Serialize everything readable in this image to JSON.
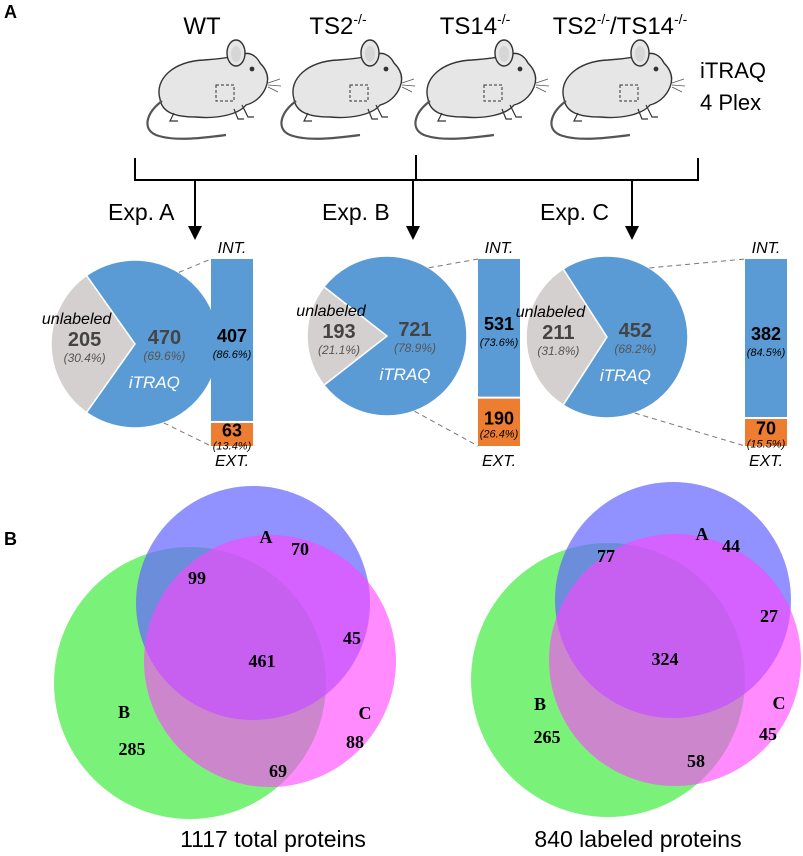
{
  "panels": {
    "a_label": "A",
    "b_label": "B"
  },
  "mice": [
    {
      "label": "WT",
      "sup": ""
    },
    {
      "label": "TS2",
      "sup": "-/-"
    },
    {
      "label": "TS14",
      "sup": "-/-"
    },
    {
      "label": "TS2",
      "sup": "-/-",
      "label2": "/TS14",
      "sup2": "-/-"
    }
  ],
  "itraq_label": {
    "line1": "iTRAQ",
    "line2": "4 Plex"
  },
  "experiments": [
    {
      "name": "Exp. A",
      "unlabeled": "205",
      "unlabeled_pct": "(30.4%)",
      "itraq": "470",
      "itraq_pct": "(69.6%)",
      "int": "407",
      "int_pct": "(86.6%)",
      "ext": "63",
      "ext_pct": "(13.4%)",
      "itraq_fraction": 0.696,
      "int_fraction": 0.866
    },
    {
      "name": "Exp. B",
      "unlabeled": "193",
      "unlabeled_pct": "(21.1%)",
      "itraq": "721",
      "itraq_pct": "(78.9%)",
      "int": "531",
      "int_pct": "(73.6%)",
      "ext": "190",
      "ext_pct": "(26.4%)",
      "itraq_fraction": 0.789,
      "int_fraction": 0.736
    },
    {
      "name": "Exp. C",
      "unlabeled": "211",
      "unlabeled_pct": "(31.8%)",
      "itraq": "452",
      "itraq_pct": "(68.2%)",
      "int": "382",
      "int_pct": "(84.5%)",
      "ext": "70",
      "ext_pct": "(15.5%)",
      "itraq_fraction": 0.682,
      "int_fraction": 0.845
    }
  ],
  "pie_labels": {
    "unlabeled": "unlabeled",
    "itraq": "iTRAQ",
    "int": "INT.",
    "ext": "EXT."
  },
  "venns": [
    {
      "set_a": "A",
      "set_b": "B",
      "set_c": "C",
      "a_only": "70",
      "ab": "99",
      "ac": "45",
      "abc": "461",
      "b_only": "285",
      "c_only": "88",
      "bc": "69",
      "caption": "1117 total proteins"
    },
    {
      "set_a": "A",
      "set_b": "B",
      "set_c": "C",
      "a_only": "44",
      "ab": "77",
      "ac": "27",
      "abc": "324",
      "b_only": "265",
      "c_only": "45",
      "bc": "58",
      "caption": "840 labeled proteins"
    }
  ],
  "colors": {
    "itraq": "#5b9bd5",
    "unlabeled": "#d4d0d0",
    "ext": "#ed7d31",
    "venn_a": "#6666ff",
    "venn_b": "#55ee55",
    "venn_c": "#ff44ff"
  }
}
